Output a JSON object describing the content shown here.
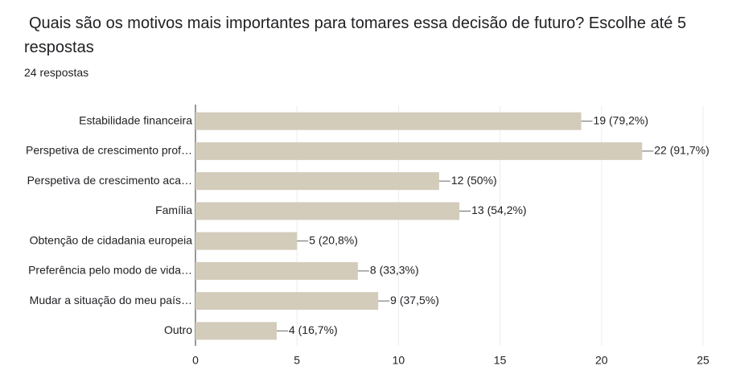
{
  "chart_data": {
    "type": "bar",
    "orientation": "horizontal",
    "title": "Quais são os motivos mais importantes para tomares essa decisão de futuro? Escolhe até 5 respostas",
    "subtitle": "24 respostas",
    "categories": [
      "Estabilidade financeira",
      "Perspetiva de crescimento prof…",
      "Perspetiva de crescimento aca…",
      "Família",
      "Obtenção de cidadania europeia",
      "Preferência pelo modo de vida…",
      "Mudar a situação do meu país…",
      "Outro"
    ],
    "values": [
      19,
      22,
      12,
      13,
      5,
      8,
      9,
      4
    ],
    "value_labels": [
      "19 (79,2%)",
      "22 (91,7%)",
      "12 (50%)",
      "13 (54,2%)",
      "5 (20,8%)",
      "8 (33,3%)",
      "9 (37,5%)",
      "4 (16,7%)"
    ],
    "color": "#d3ccbb",
    "xlim": [
      0,
      25
    ],
    "xticks": [
      0,
      5,
      10,
      15,
      20,
      25
    ],
    "grid": true
  }
}
